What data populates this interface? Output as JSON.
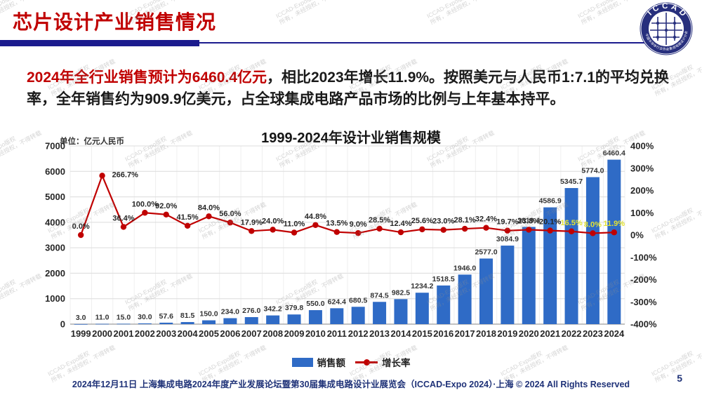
{
  "header": {
    "title": "芯片设计产业销售情况",
    "title_color": "#C00000",
    "rule_color": "#1B1B8E"
  },
  "logo": {
    "text": "ICCAD",
    "subtext": "中国半导体行业协会集成电路设计分会",
    "color": "#272F7D"
  },
  "intro": {
    "highlight": "2024年全行业销售预计为6460.4亿元",
    "rest": "，相比2023年增长11.9%。按照美元与人民币1:7.1的平均兑换率，全年销售约为909.9亿美元，占全球集成电路产品市场的比例与上年基本持平。",
    "highlight_color": "#C00000"
  },
  "chart_data": {
    "type": "bar+line",
    "title": "1999-2024年设计业销售规模",
    "unit_label": "单位：亿元人民币",
    "categories": [
      1999,
      2000,
      2001,
      2002,
      2003,
      2004,
      2005,
      2006,
      2007,
      2008,
      2009,
      2010,
      2011,
      2012,
      2013,
      2014,
      2015,
      2016,
      2017,
      2018,
      2019,
      2020,
      2021,
      2022,
      2023,
      2024
    ],
    "series": [
      {
        "name": "销售额",
        "type": "bar",
        "color": "#2F6BC6",
        "values": [
          3.0,
          11.0,
          15.0,
          30.0,
          57.6,
          81.5,
          150.0,
          234.0,
          276.0,
          342.2,
          379.8,
          550.0,
          624.4,
          680.5,
          874.5,
          982.5,
          1234.2,
          1518.5,
          1946.0,
          2577.0,
          3084.9,
          3819.4,
          4586.9,
          5345.7,
          5774.0,
          6460.4
        ]
      },
      {
        "name": "增长率",
        "type": "line",
        "color": "#C00000",
        "values_pct": [
          0.0,
          266.7,
          36.4,
          100.0,
          92.0,
          41.5,
          84.0,
          56.0,
          17.9,
          24.0,
          11.0,
          44.8,
          13.5,
          9.0,
          28.5,
          12.4,
          25.6,
          23.0,
          28.1,
          32.4,
          19.7,
          23.8,
          20.1,
          16.5,
          8.0,
          11.9
        ],
        "label_suffix": "%",
        "yellow_label_indices": [
          23,
          24,
          25
        ],
        "yellow_color": "#E3E332"
      }
    ],
    "left_axis": {
      "min": 0,
      "max": 7000,
      "step": 1000
    },
    "right_axis": {
      "min": -400,
      "max": 400,
      "step": 100,
      "suffix": "%"
    },
    "grid": true,
    "legend_position": "bottom",
    "legend": [
      {
        "label": "销售额",
        "type": "bar"
      },
      {
        "label": "增长率",
        "type": "line"
      }
    ]
  },
  "footer": {
    "text": "2024年12月11日 上海集成电路2024年度产业发展论坛暨第30届集成电路设计业展览会（ICCAD-Expo 2024）·上海 © 2024 All Rights Reserved",
    "page_number": "5"
  },
  "watermark": {
    "line1": "ICCAD-Expo版权",
    "line2": "所有，未经授权，不得转载"
  }
}
